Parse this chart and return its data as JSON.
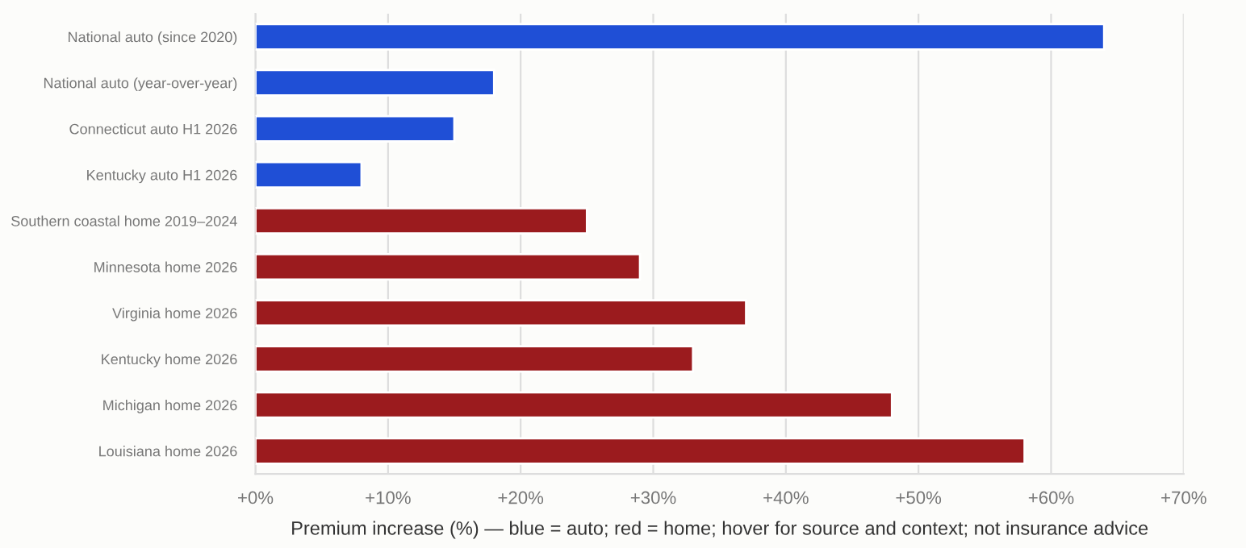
{
  "chart_data": {
    "type": "bar",
    "orientation": "horizontal",
    "categories": [
      "National auto (since 2020)",
      "National auto (year-over-year)",
      "Connecticut auto H1 2026",
      "Kentucky auto H1 2026",
      "Southern coastal home 2019–2024",
      "Minnesota home 2026",
      "Virginia home 2026",
      "Kentucky home 2026",
      "Michigan home 2026",
      "Louisiana home 2026"
    ],
    "values": [
      64,
      18,
      15,
      8,
      25,
      29,
      37,
      33,
      48,
      58
    ],
    "colors": [
      "#1f4fd6",
      "#1f4fd6",
      "#1f4fd6",
      "#1f4fd6",
      "#9b1b1e",
      "#9b1b1e",
      "#9b1b1e",
      "#9b1b1e",
      "#9b1b1e",
      "#9b1b1e"
    ],
    "xlabel": "Premium increase (%) — blue = auto; red = home; hover for source and context; not insurance advice",
    "xlim": [
      0,
      70
    ],
    "xticks": [
      {
        "value": 0,
        "label": "+0%"
      },
      {
        "value": 10,
        "label": "+10%"
      },
      {
        "value": 20,
        "label": "+20%"
      },
      {
        "value": 30,
        "label": "+30%"
      },
      {
        "value": 40,
        "label": "+40%"
      },
      {
        "value": 50,
        "label": "+50%"
      },
      {
        "value": 60,
        "label": "+60%"
      },
      {
        "value": 70,
        "label": "+70%"
      }
    ],
    "grid": "x"
  }
}
